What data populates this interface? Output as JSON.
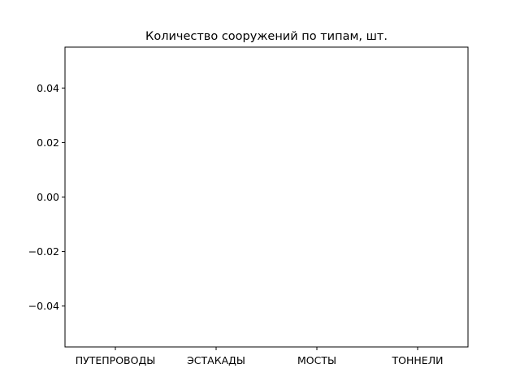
{
  "chart_data": {
    "type": "bar",
    "title": "Количество сооружений по типам, шт.",
    "xlabel": "",
    "ylabel": "",
    "categories": [
      "ПУТЕПРОВОДЫ",
      "ЭСТАКАДЫ",
      "МОСТЫ",
      "ТОННЕЛИ"
    ],
    "values": [
      0,
      0,
      0,
      0
    ],
    "ylim": [
      -0.055,
      0.055
    ],
    "yticks": [
      0.04,
      0.02,
      0.0,
      -0.02,
      -0.04
    ],
    "ytick_labels": [
      "0.04",
      "0.02",
      "0.00",
      "−0.02",
      "−0.04"
    ],
    "grid": false,
    "bar_color": "#1f77b4"
  }
}
